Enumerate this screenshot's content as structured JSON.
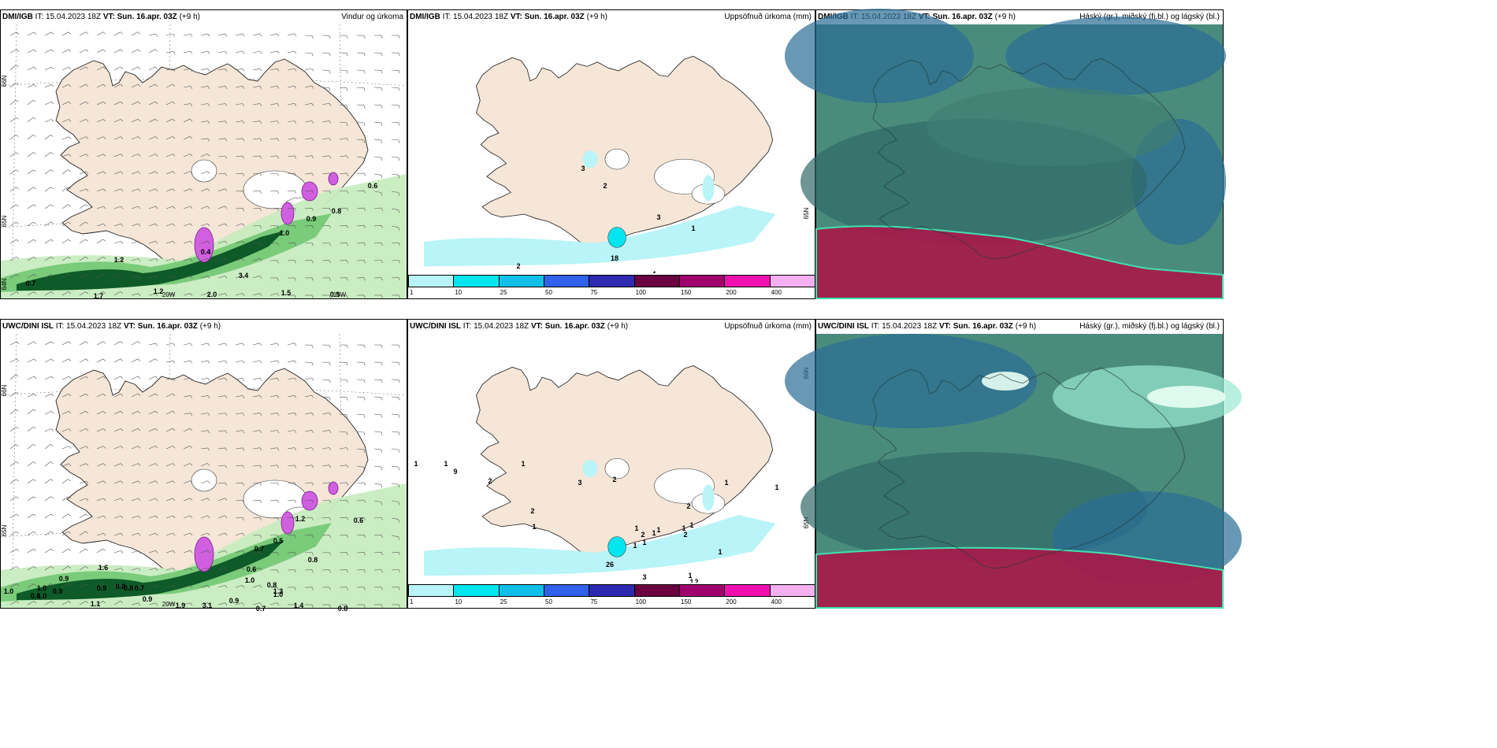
{
  "panels": [
    {
      "model": "DMI/IGB",
      "it_label": "IT:",
      "it": "15.04.2023 18Z",
      "vt_label": "VT:",
      "vt": "Sun. 16.apr. 03Z",
      "lead": "(+9 h)",
      "title": "Vindur og úrkoma",
      "labels": [
        "0.6",
        "0.8",
        "0.9",
        "1.0",
        "0.4",
        "1.2",
        "3.4",
        "0.7",
        "1.7",
        "1.2",
        "2.0",
        "1.5",
        "0.9"
      ],
      "lat_labels": [
        "66N",
        "65N",
        "64N"
      ],
      "lon_labels": [
        "20W",
        "15W"
      ]
    },
    {
      "model": "DMI/IGB",
      "it_label": "IT:",
      "it": "15.04.2023 18Z",
      "vt_label": "VT:",
      "vt": "Sun. 16.apr. 03Z",
      "lead": "(+9 h)",
      "title": "Uppsöfnuð úrkoma (mm)",
      "labels": [
        "3",
        "2",
        "3",
        "1",
        "2",
        "18",
        "4"
      ],
      "lat_labels": [
        "65N"
      ]
    },
    {
      "model": "DMI/IGB",
      "it_label": "IT:",
      "it": "15.04.2023 18Z",
      "vt_label": "VT:",
      "vt": "Sun. 16.apr. 03Z",
      "lead": "(+9 h)",
      "title": "Háský (gr.), miðský (fj.bl.) og lágský (bl.)"
    },
    {
      "model": "UWC/DINI ISL",
      "it_label": "IT:",
      "it": "15.04.2023 18Z",
      "vt_label": "VT:",
      "vt": "Sun. 16.apr. 03Z",
      "lead": "(+9 h)",
      "title": "",
      "labels": [
        "0.6",
        "0.7",
        "0.5",
        "1.2",
        "0.8",
        "0.6",
        "1.0",
        "0.8",
        "1.0",
        "1.6",
        "0.9",
        "1.0",
        "0.9",
        "0.9",
        "0.8",
        "0.8",
        "0.7",
        "1.0",
        "0.8",
        "0.9",
        "1.1",
        "1.0",
        "1.9",
        "3.1",
        "0.9",
        "0.7",
        "1.3",
        "1.4",
        "0.8"
      ],
      "lat_labels": [
        "66N",
        "65N"
      ],
      "lon_labels": [
        "20W"
      ]
    },
    {
      "model": "UWC/DINI ISL",
      "it_label": "IT:",
      "it": "15.04.2023 18Z",
      "vt_label": "VT:",
      "vt": "Sun. 16.apr. 03Z",
      "lead": "(+9 h)",
      "title": "Uppsöfnuð úrkoma (mm)",
      "labels": [
        "1",
        "1",
        "9",
        "2",
        "1",
        "3",
        "2",
        "2",
        "1",
        "1",
        "2",
        "1",
        "1",
        "1",
        "1",
        "2",
        "1",
        "26",
        "1",
        "2",
        "3",
        "1",
        "1",
        "1",
        "1",
        "2",
        "1"
      ],
      "lat_labels": [
        "66N",
        "65N"
      ]
    },
    {
      "model": "UWC/DINI ISL",
      "it_label": "IT:",
      "it": "15.04.2023 18Z",
      "vt_label": "VT:",
      "vt": "Sun. 16.apr. 03Z",
      "lead": "(+9 h)",
      "title": "Háský (gr.), miðský (fj.bl.) og lágský (bl.)"
    }
  ],
  "colorbar": {
    "ticks": [
      "1",
      "10",
      "25",
      "50",
      "75",
      "100",
      "150",
      "200",
      "400"
    ],
    "colors": [
      "#b8f4f8",
      "#00e6f0",
      "#10c0e8",
      "#2f62e8",
      "#2e2ab0",
      "#6a0040",
      "#a0006e",
      "#f010b0",
      "#f4b0f0"
    ]
  },
  "palette": {
    "land": "#f5e6d8",
    "sea": "#ffffff",
    "green_light": "#c8ecc0",
    "green_mid": "#7acb7a",
    "green_dark": "#0e5a28",
    "magenta": "#d060e0",
    "cyan_light": "#b8f4f8",
    "cloud_base": "#4a8c7c",
    "cloud_dark": "#2f6a68",
    "cloud_blue": "#2a6c96",
    "cloud_crimson": "#a81848",
    "cloud_mint": "#40e0b0"
  }
}
